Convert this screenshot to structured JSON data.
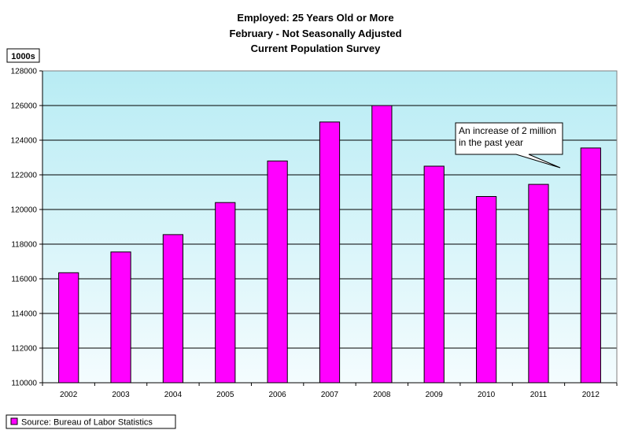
{
  "chart_data": {
    "type": "bar",
    "title_lines": [
      "Employed: 25 Years Old or More",
      "February - Not Seasonally Adjusted",
      "Current Population Survey"
    ],
    "unit_label": "1000s",
    "categories": [
      "2002",
      "2003",
      "2004",
      "2005",
      "2006",
      "2007",
      "2008",
      "2009",
      "2010",
      "2011",
      "2012"
    ],
    "values": [
      116350,
      117550,
      118550,
      120400,
      122800,
      125050,
      126000,
      122500,
      120750,
      121450,
      123550
    ],
    "ylim": [
      110000,
      128000
    ],
    "y_ticks": [
      110000,
      112000,
      114000,
      116000,
      118000,
      120000,
      122000,
      124000,
      126000,
      128000
    ],
    "grid": true,
    "annotation": {
      "lines": [
        "An increase of 2 million",
        "in the past year"
      ],
      "points_to": "2012"
    },
    "legend": {
      "label": "Source: Bureau of Labor Statistics",
      "placement": "bottom-left"
    },
    "colors": {
      "bar": "#ff00ff",
      "plot_top": "#b8ecf4",
      "plot_bottom": "#f4fcfe",
      "grid": "#000000"
    }
  }
}
